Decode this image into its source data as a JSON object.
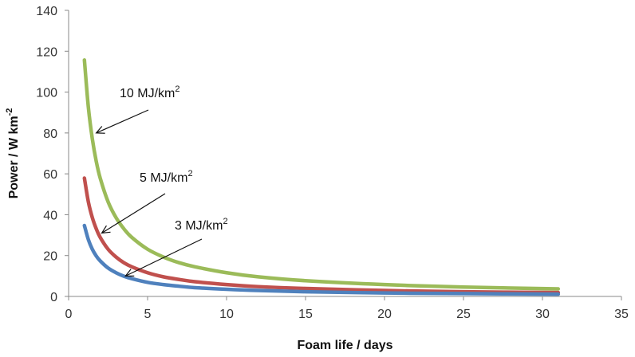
{
  "chart_data": {
    "type": "line",
    "title": "",
    "xlabel": "Foam life / days",
    "ylabel": {
      "text": "Power  /  W km",
      "sup": "-2"
    },
    "xlim": [
      0,
      35
    ],
    "ylim": [
      0,
      140
    ],
    "xticks": [
      0,
      5,
      10,
      15,
      20,
      25,
      30,
      35
    ],
    "yticks": [
      0,
      20,
      40,
      60,
      80,
      100,
      120,
      140
    ],
    "grid": false,
    "legend": "none",
    "series": [
      {
        "name": "10 MJ/km2",
        "color": "#9bbb59",
        "x": [
          1,
          1.25,
          1.5,
          1.75,
          2,
          2.5,
          3,
          3.5,
          4,
          5,
          6,
          7,
          8,
          10,
          12,
          15,
          20,
          25,
          31
        ],
        "y": [
          115.7,
          92.6,
          77.2,
          66.1,
          57.9,
          46.3,
          38.6,
          33.1,
          28.9,
          23.1,
          19.3,
          16.5,
          14.5,
          11.6,
          9.6,
          7.7,
          5.8,
          4.6,
          3.7
        ]
      },
      {
        "name": "5 MJ/km2",
        "color": "#c0504d",
        "x": [
          1,
          1.25,
          1.5,
          1.75,
          2,
          2.5,
          3,
          3.5,
          4,
          5,
          6,
          7,
          8,
          10,
          12,
          15,
          20,
          25,
          31
        ],
        "y": [
          57.9,
          46.3,
          38.6,
          33.1,
          28.9,
          23.1,
          19.3,
          16.5,
          14.5,
          11.6,
          9.6,
          8.3,
          7.2,
          5.8,
          4.8,
          3.9,
          2.9,
          2.3,
          1.9
        ]
      },
      {
        "name": "3 MJ/km2",
        "color": "#4f81bd",
        "x": [
          1,
          1.25,
          1.5,
          1.75,
          2,
          2.5,
          3,
          3.5,
          4,
          5,
          6,
          7,
          8,
          10,
          12,
          15,
          20,
          25,
          31
        ],
        "y": [
          34.7,
          27.8,
          23.1,
          19.8,
          17.4,
          13.9,
          11.6,
          9.9,
          8.7,
          6.9,
          5.8,
          5.0,
          4.3,
          3.5,
          2.9,
          2.3,
          1.7,
          1.4,
          1.1
        ]
      }
    ],
    "annotations": [
      {
        "text": "10 MJ/km",
        "sup": "2",
        "series": "10 MJ/km2",
        "arrow_to": [
          1.75,
          80
        ]
      },
      {
        "text": "5 MJ/km",
        "sup": "2",
        "series": "5 MJ/km2",
        "arrow_to": [
          2.1,
          31
        ]
      },
      {
        "text": "3 MJ/km",
        "sup": "2",
        "series": "3 MJ/km2",
        "arrow_to": [
          3.6,
          10
        ]
      }
    ]
  }
}
